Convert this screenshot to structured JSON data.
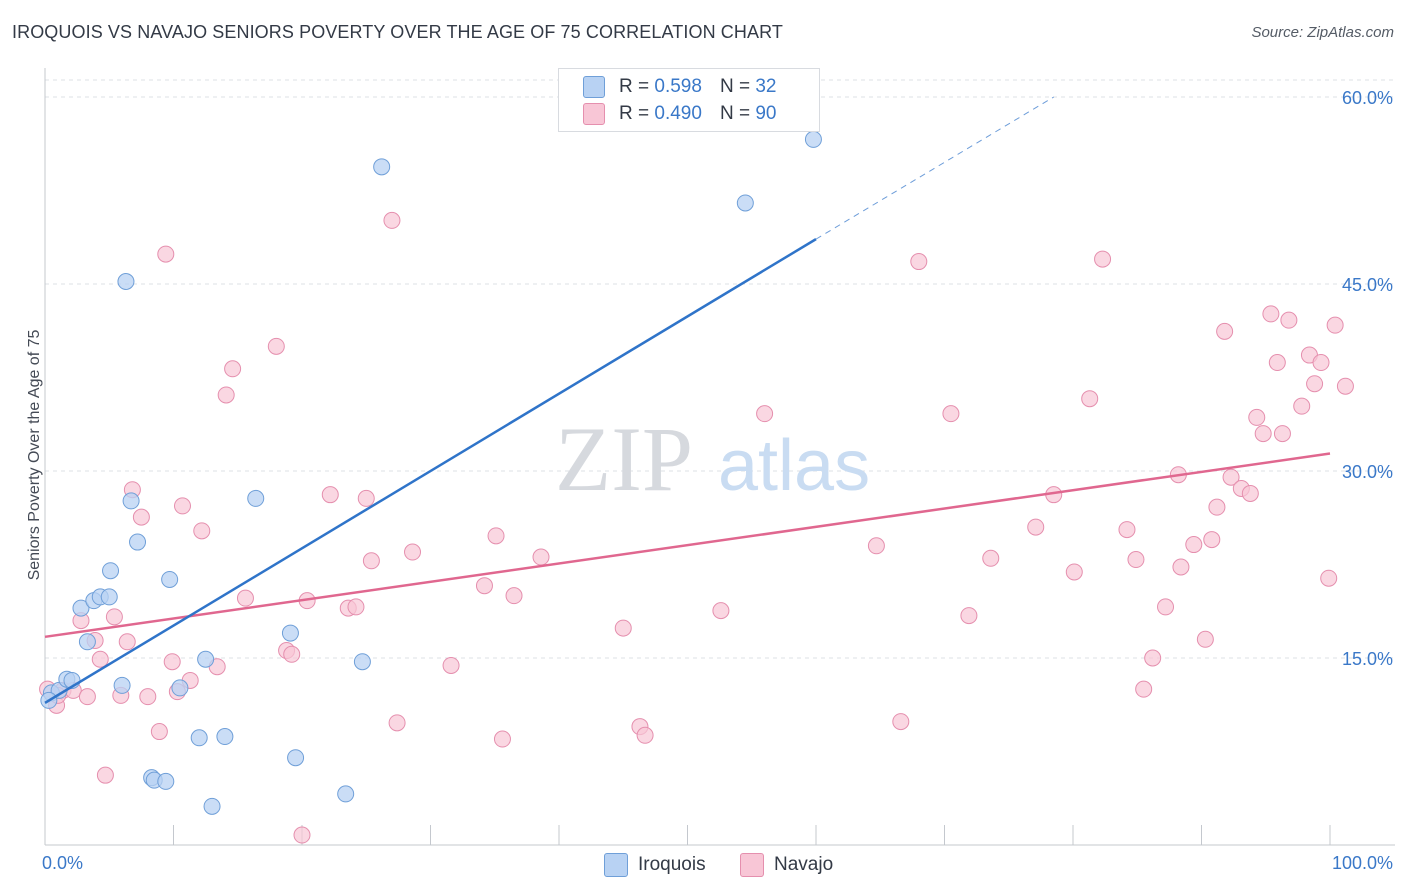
{
  "header": {
    "title": "IROQUOIS VS NAVAJO SENIORS POVERTY OVER THE AGE OF 75 CORRELATION CHART",
    "source": "Source: ZipAtlas.com"
  },
  "watermark": {
    "zip": "ZIP",
    "atlas": "atlas"
  },
  "legend": {
    "r_label": "R =",
    "n_label": "N =",
    "iroquois": {
      "r": "0.598",
      "n": "32"
    },
    "navajo": {
      "r": "0.490",
      "n": "90"
    }
  },
  "colors": {
    "iroquois_fill": "#b8d2f3",
    "iroquois_stroke": "#6f9fd8",
    "iroquois_line": "#2f74c9",
    "navajo_fill": "#f8c6d6",
    "navajo_stroke": "#e58fae",
    "navajo_line": "#e0678f",
    "tick_label": "#3a78c8",
    "grid": "#dde0e5"
  },
  "chart_data": {
    "type": "scatter",
    "title": "IROQUOIS VS NAVAJO SENIORS POVERTY OVER THE AGE OF 75 CORRELATION CHART",
    "xlabel": "",
    "ylabel": "Seniors Poverty Over the Age of 75",
    "xlim": [
      0,
      100
    ],
    "ylim": [
      0,
      60
    ],
    "x_tick_labels": [
      "0.0%",
      "100.0%"
    ],
    "y_ticks": [
      15,
      30,
      45,
      60
    ],
    "y_tick_labels": [
      "15.0%",
      "30.0%",
      "45.0%",
      "60.0%"
    ],
    "grid": "horizontal dashed",
    "legend_position": "top-center and bottom",
    "series": [
      {
        "name": "Iroquois",
        "points": [
          [
            0.5,
            12.2
          ],
          [
            1.1,
            12.4
          ],
          [
            1.7,
            13.3
          ],
          [
            2.1,
            13.2
          ],
          [
            2.8,
            19.0
          ],
          [
            3.3,
            16.3
          ],
          [
            3.8,
            19.6
          ],
          [
            4.3,
            19.9
          ],
          [
            5.0,
            19.9
          ],
          [
            5.1,
            22.0
          ],
          [
            6.0,
            12.8
          ],
          [
            6.3,
            45.2
          ],
          [
            6.7,
            27.6
          ],
          [
            7.2,
            24.3
          ],
          [
            8.3,
            5.4
          ],
          [
            8.5,
            5.2
          ],
          [
            9.4,
            5.1
          ],
          [
            9.7,
            21.3
          ],
          [
            10.5,
            12.6
          ],
          [
            12.0,
            8.6
          ],
          [
            12.5,
            14.9
          ],
          [
            13.0,
            3.1
          ],
          [
            14.0,
            8.7
          ],
          [
            16.4,
            27.8
          ],
          [
            19.1,
            17.0
          ],
          [
            19.5,
            7.0
          ],
          [
            23.4,
            4.1
          ],
          [
            24.7,
            14.7
          ],
          [
            26.2,
            54.4
          ],
          [
            54.5,
            51.5
          ],
          [
            59.8,
            56.6
          ],
          [
            0.3,
            11.6
          ]
        ],
        "trend": {
          "x": [
            0,
            60
          ],
          "y": [
            11.4,
            48.6
          ],
          "dashed_to": [
            78.5,
            60.0
          ]
        }
      },
      {
        "name": "Navajo",
        "points": [
          [
            0.2,
            12.5
          ],
          [
            0.9,
            11.2
          ],
          [
            1.4,
            12.4
          ],
          [
            2.2,
            12.4
          ],
          [
            2.8,
            18.0
          ],
          [
            3.3,
            11.9
          ],
          [
            3.9,
            16.4
          ],
          [
            4.3,
            14.9
          ],
          [
            4.7,
            5.6
          ],
          [
            5.4,
            18.3
          ],
          [
            5.9,
            12.0
          ],
          [
            6.4,
            16.3
          ],
          [
            6.8,
            28.5
          ],
          [
            7.5,
            26.3
          ],
          [
            8.0,
            11.9
          ],
          [
            8.9,
            9.1
          ],
          [
            9.4,
            47.4
          ],
          [
            9.9,
            14.7
          ],
          [
            10.3,
            12.3
          ],
          [
            10.7,
            27.2
          ],
          [
            11.3,
            13.2
          ],
          [
            12.2,
            25.2
          ],
          [
            13.4,
            14.3
          ],
          [
            14.1,
            36.1
          ],
          [
            14.6,
            38.2
          ],
          [
            15.6,
            19.8
          ],
          [
            18.0,
            40.0
          ],
          [
            18.8,
            15.6
          ],
          [
            19.2,
            15.3
          ],
          [
            20.0,
            0.8
          ],
          [
            20.4,
            19.6
          ],
          [
            22.2,
            28.1
          ],
          [
            23.6,
            19.0
          ],
          [
            24.2,
            19.1
          ],
          [
            25.0,
            27.8
          ],
          [
            25.4,
            22.8
          ],
          [
            27.0,
            50.1
          ],
          [
            27.4,
            9.8
          ],
          [
            28.6,
            23.5
          ],
          [
            31.6,
            14.4
          ],
          [
            34.2,
            20.8
          ],
          [
            35.1,
            24.8
          ],
          [
            35.6,
            8.5
          ],
          [
            36.5,
            20.0
          ],
          [
            38.6,
            23.1
          ],
          [
            45.0,
            17.4
          ],
          [
            46.3,
            9.5
          ],
          [
            46.7,
            8.8
          ],
          [
            52.6,
            18.8
          ],
          [
            56.0,
            34.6
          ],
          [
            64.7,
            24.0
          ],
          [
            66.6,
            9.9
          ],
          [
            68.0,
            46.8
          ],
          [
            70.5,
            34.6
          ],
          [
            71.9,
            18.4
          ],
          [
            73.6,
            23.0
          ],
          [
            77.1,
            25.5
          ],
          [
            78.5,
            28.1
          ],
          [
            80.1,
            21.9
          ],
          [
            81.3,
            35.8
          ],
          [
            82.3,
            47.0
          ],
          [
            84.2,
            25.3
          ],
          [
            84.9,
            22.9
          ],
          [
            85.5,
            12.5
          ],
          [
            86.2,
            15.0
          ],
          [
            87.2,
            19.1
          ],
          [
            88.2,
            29.7
          ],
          [
            88.4,
            22.3
          ],
          [
            89.4,
            24.1
          ],
          [
            90.3,
            16.5
          ],
          [
            90.8,
            24.5
          ],
          [
            91.2,
            27.1
          ],
          [
            91.8,
            41.2
          ],
          [
            92.3,
            29.5
          ],
          [
            93.1,
            28.6
          ],
          [
            93.8,
            28.2
          ],
          [
            94.3,
            34.3
          ],
          [
            94.8,
            33.0
          ],
          [
            95.4,
            42.6
          ],
          [
            95.9,
            38.7
          ],
          [
            96.3,
            33.0
          ],
          [
            96.8,
            42.1
          ],
          [
            97.8,
            35.2
          ],
          [
            98.4,
            39.3
          ],
          [
            98.8,
            37.0
          ],
          [
            99.3,
            38.7
          ],
          [
            99.9,
            21.4
          ],
          [
            100.4,
            41.7
          ],
          [
            101.2,
            36.8
          ],
          [
            1.0,
            12.0
          ]
        ],
        "trend": {
          "x": [
            0,
            100
          ],
          "y": [
            16.7,
            31.4
          ]
        }
      }
    ]
  },
  "bottom_legend": {
    "iroquois": "Iroquois",
    "navajo": "Navajo"
  }
}
